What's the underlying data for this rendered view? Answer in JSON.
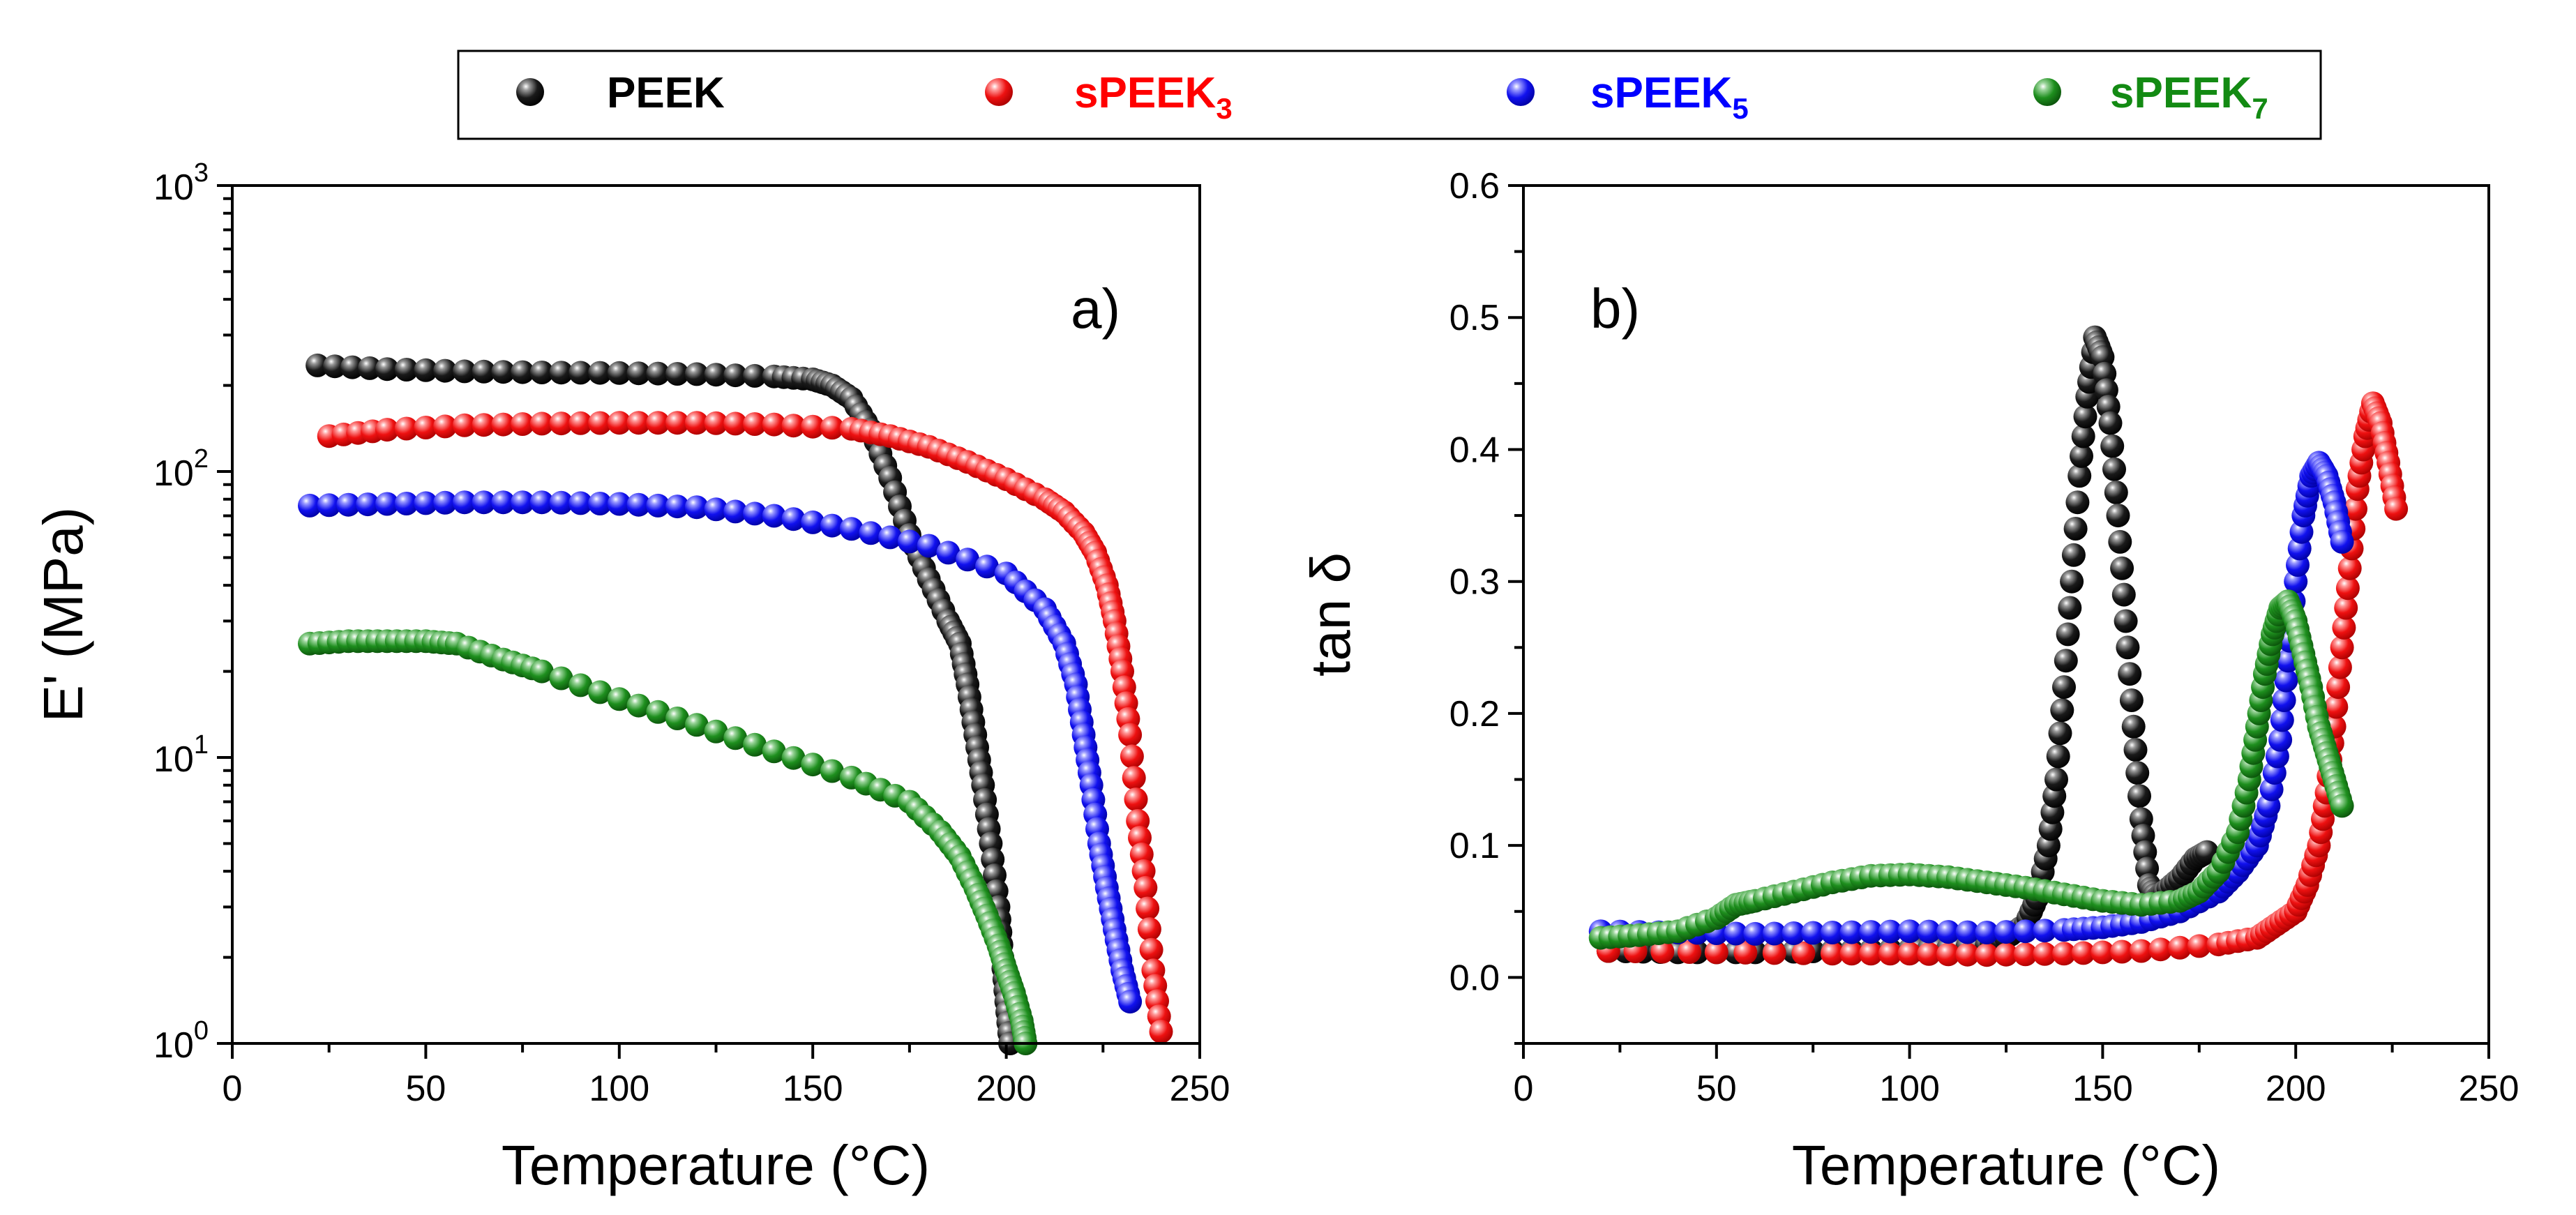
{
  "legend": {
    "entries": [
      {
        "name": "PEEK",
        "sub": "",
        "color": "#000000"
      },
      {
        "name": "sPEEK",
        "sub": "3",
        "color": "#ff0000"
      },
      {
        "name": "sPEEK",
        "sub": "5",
        "color": "#0000ff"
      },
      {
        "name": "sPEEK",
        "sub": "7",
        "color": "#138a13"
      }
    ]
  },
  "chart_data": [
    {
      "id": "a",
      "type": "scatter",
      "panel_label": "a)",
      "title": "",
      "xlabel": "Temperature (°C)",
      "ylabel": "E' (MPa)",
      "xlim": [
        0,
        250
      ],
      "ylim": [
        1,
        1000
      ],
      "yscale": "log",
      "xticks": [
        0,
        50,
        100,
        150,
        200,
        250
      ],
      "xtick_labels": [
        "0",
        "50",
        "100",
        "150",
        "200",
        "250"
      ],
      "yticks": [
        1,
        10,
        100,
        1000
      ],
      "ytick_labels": [
        {
          "base": "10",
          "exp": "0"
        },
        {
          "base": "10",
          "exp": "1"
        },
        {
          "base": "10",
          "exp": "2"
        },
        {
          "base": "10",
          "exp": "3"
        }
      ],
      "series": [
        {
          "name": "PEEK",
          "color": "#000000",
          "x": [
            22,
            40,
            60,
            80,
            100,
            120,
            140,
            150,
            155,
            160,
            165,
            170,
            175,
            180,
            185,
            188,
            190,
            192,
            194,
            196,
            198,
            199,
            200,
            201
          ],
          "y": [
            235,
            228,
            224,
            222,
            221,
            219,
            215,
            210,
            200,
            180,
            140,
            95,
            60,
            42,
            30,
            25,
            18,
            12,
            8,
            5,
            3,
            2,
            1.4,
            1.0
          ]
        },
        {
          "name": "sPEEK3",
          "color": "#ff0000",
          "x": [
            25,
            40,
            60,
            80,
            100,
            120,
            140,
            160,
            170,
            180,
            190,
            200,
            210,
            215,
            220,
            223,
            226,
            228,
            230,
            232,
            234,
            236,
            238,
            240
          ],
          "y": [
            133,
            140,
            145,
            147,
            148,
            148,
            146,
            141,
            133,
            122,
            108,
            94,
            80,
            72,
            61,
            52,
            40,
            30,
            20,
            12,
            6,
            3.5,
            1.8,
            1.1
          ]
        },
        {
          "name": "sPEEK5",
          "color": "#0000ff",
          "x": [
            20,
            40,
            60,
            80,
            100,
            120,
            140,
            160,
            180,
            200,
            210,
            215,
            218,
            220,
            222,
            224,
            226,
            228,
            230,
            232
          ],
          "y": [
            76,
            77,
            78,
            78,
            77,
            75,
            70,
            63,
            55,
            44,
            33,
            25,
            18,
            12,
            8,
            5,
            3.5,
            2.5,
            1.8,
            1.4
          ]
        },
        {
          "name": "sPEEK7",
          "color": "#138a13",
          "x": [
            20,
            30,
            40,
            50,
            58,
            70,
            80,
            100,
            120,
            140,
            160,
            175,
            183,
            188,
            192,
            195,
            198,
            200,
            202,
            204,
            205
          ],
          "y": [
            25,
            25.5,
            25.5,
            25.5,
            25,
            22,
            20,
            16,
            13,
            10.5,
            8.5,
            7,
            5.5,
            4.5,
            3.5,
            2.8,
            2.2,
            1.8,
            1.5,
            1.2,
            1.0
          ]
        }
      ]
    },
    {
      "id": "b",
      "type": "scatter",
      "panel_label": "b)",
      "title": "",
      "xlabel": "Temperature (°C)",
      "ylabel": "tan δ",
      "xlim": [
        0,
        250
      ],
      "ylim": [
        -0.05,
        0.6
      ],
      "yscale": "linear",
      "xticks": [
        0,
        50,
        100,
        150,
        200,
        250
      ],
      "xtick_labels": [
        "0",
        "50",
        "100",
        "150",
        "200",
        "250"
      ],
      "yticks": [
        0.0,
        0.1,
        0.2,
        0.3,
        0.4,
        0.5,
        0.6
      ],
      "ytick_labels": [
        "0.0",
        "0.1",
        "0.2",
        "0.3",
        "0.4",
        "0.5",
        "0.6"
      ],
      "series": [
        {
          "name": "PEEK",
          "color": "#000000",
          "x": [
            22,
            40,
            60,
            80,
            100,
            110,
            120,
            125,
            130,
            133,
            136,
            138,
            140,
            142,
            144,
            146,
            148,
            150,
            152,
            154,
            156,
            158,
            160,
            162,
            164,
            166,
            170,
            174,
            177
          ],
          "y": [
            0.02,
            0.019,
            0.019,
            0.02,
            0.021,
            0.022,
            0.025,
            0.03,
            0.04,
            0.06,
            0.1,
            0.15,
            0.22,
            0.3,
            0.38,
            0.44,
            0.485,
            0.47,
            0.42,
            0.35,
            0.27,
            0.19,
            0.12,
            0.07,
            0.06,
            0.065,
            0.075,
            0.09,
            0.095
          ]
        },
        {
          "name": "sPEEK3",
          "color": "#ff0000",
          "x": [
            22,
            50,
            80,
            100,
            120,
            140,
            160,
            180,
            190,
            195,
            200,
            203,
            206,
            208,
            210,
            212,
            214,
            216,
            218,
            220,
            222,
            224,
            226
          ],
          "y": [
            0.02,
            0.019,
            0.018,
            0.018,
            0.017,
            0.018,
            0.02,
            0.025,
            0.03,
            0.04,
            0.05,
            0.07,
            0.1,
            0.14,
            0.19,
            0.25,
            0.31,
            0.37,
            0.41,
            0.435,
            0.42,
            0.39,
            0.355
          ]
        },
        {
          "name": "sPEEK5",
          "color": "#0000ff",
          "x": [
            20,
            40,
            60,
            80,
            100,
            120,
            140,
            150,
            160,
            170,
            180,
            185,
            190,
            193,
            196,
            198,
            200,
            202,
            204,
            206,
            208,
            210,
            212
          ],
          "y": [
            0.035,
            0.034,
            0.033,
            0.034,
            0.035,
            0.034,
            0.036,
            0.038,
            0.042,
            0.05,
            0.065,
            0.08,
            0.1,
            0.13,
            0.18,
            0.24,
            0.3,
            0.35,
            0.38,
            0.39,
            0.38,
            0.36,
            0.33
          ]
        },
        {
          "name": "sPEEK7",
          "color": "#138a13",
          "x": [
            20,
            30,
            40,
            50,
            55,
            60,
            70,
            80,
            90,
            100,
            110,
            120,
            130,
            140,
            150,
            160,
            170,
            175,
            180,
            185,
            188,
            190,
            192,
            194,
            196,
            198,
            200,
            202,
            204,
            206,
            208,
            210,
            212
          ],
          "y": [
            0.03,
            0.032,
            0.035,
            0.045,
            0.055,
            0.058,
            0.065,
            0.072,
            0.077,
            0.078,
            0.076,
            0.072,
            0.068,
            0.063,
            0.058,
            0.055,
            0.058,
            0.065,
            0.08,
            0.11,
            0.15,
            0.19,
            0.23,
            0.26,
            0.28,
            0.285,
            0.27,
            0.245,
            0.22,
            0.19,
            0.17,
            0.15,
            0.13
          ]
        }
      ]
    }
  ]
}
